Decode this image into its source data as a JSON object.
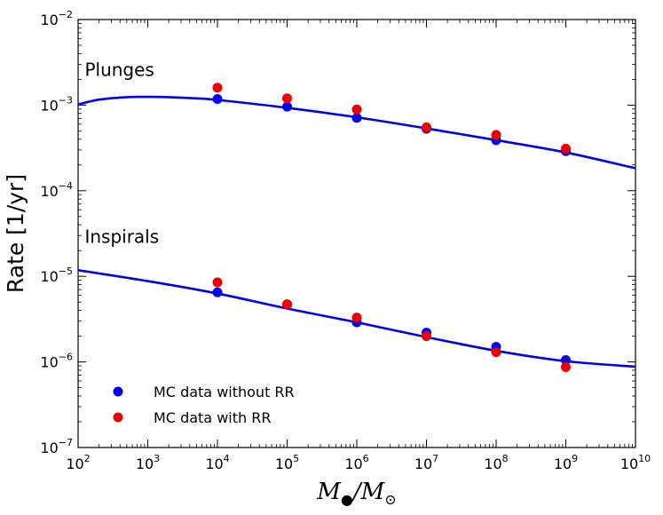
{
  "chart_data": {
    "type": "scatter",
    "xscale": "log",
    "yscale": "log",
    "xlim": [
      100,
      10000000000
    ],
    "ylim": [
      1e-07,
      0.01
    ],
    "xlabel": "M_●/M_⊙",
    "xlabel_parts": {
      "main": "M",
      "sub1": "●",
      "slash": "/M",
      "sub2": "⊙"
    },
    "ylabel": "Rate [1/yr]",
    "x_ticks": [
      {
        "base": "10",
        "exp": "2"
      },
      {
        "base": "10",
        "exp": "3"
      },
      {
        "base": "10",
        "exp": "4"
      },
      {
        "base": "10",
        "exp": "5"
      },
      {
        "base": "10",
        "exp": "6"
      },
      {
        "base": "10",
        "exp": "7"
      },
      {
        "base": "10",
        "exp": "8"
      },
      {
        "base": "10",
        "exp": "9"
      },
      {
        "base": "10",
        "exp": "10"
      }
    ],
    "y_ticks": [
      {
        "base": "10",
        "exp": "−7"
      },
      {
        "base": "10",
        "exp": "−6"
      },
      {
        "base": "10",
        "exp": "−5"
      },
      {
        "base": "10",
        "exp": "−4"
      },
      {
        "base": "10",
        "exp": "−3"
      },
      {
        "base": "10",
        "exp": "−2"
      }
    ],
    "annotations": [
      {
        "text": "Plunges",
        "x": 300,
        "y": 0.0022
      },
      {
        "text": "Inspirals",
        "x": 300,
        "y": 2.45e-05
      }
    ],
    "series": [
      {
        "name": "Plunges fit",
        "kind": "line",
        "color": "#0000ee",
        "x": [
          100,
          200,
          500,
          1000,
          2000,
          5000,
          10000,
          100000,
          1000000,
          10000000,
          100000000,
          1000000000,
          10000000000
        ],
        "y": [
          0.00102,
          0.00116,
          0.00124,
          0.00125,
          0.00124,
          0.0012,
          0.00115,
          0.00093,
          0.00072,
          0.000535,
          0.00039,
          0.00028,
          0.000183
        ]
      },
      {
        "name": "Inspirals fit",
        "kind": "line",
        "color": "#0000ee",
        "x": [
          100,
          1000,
          10000,
          100000,
          1000000,
          10000000,
          100000000,
          1000000000,
          10000000000
        ],
        "y": [
          1.18e-05,
          8.8e-06,
          6.3e-06,
          4.2e-06,
          2.9e-06,
          1.95e-06,
          1.35e-06,
          1.02e-06,
          8.8e-07
        ]
      },
      {
        "name": "MC data without RR",
        "kind": "points",
        "color": "#0000ee",
        "x": [
          10000,
          100000,
          1000000,
          10000000,
          100000000,
          1000000000,
          10000,
          100000,
          1000000,
          10000000,
          100000000,
          1000000000
        ],
        "y": [
          0.00118,
          0.00096,
          0.00071,
          0.00053,
          0.00039,
          0.00029,
          6.5e-06,
          4.7e-06,
          2.9e-06,
          2.2e-06,
          1.5e-06,
          1.05e-06
        ]
      },
      {
        "name": "MC data with RR",
        "kind": "points",
        "color": "#ee0000",
        "x": [
          10000,
          100000,
          1000000,
          10000000,
          100000000,
          1000000000,
          10000,
          100000,
          1000000,
          10000000,
          100000000,
          1000000000
        ],
        "y": [
          0.0016,
          0.0012,
          0.00089,
          0.00055,
          0.00045,
          0.00031,
          8.5e-06,
          4.7e-06,
          3.3e-06,
          2e-06,
          1.3e-06,
          8.7e-07
        ]
      }
    ],
    "legend": {
      "position": "lower-left",
      "entries": [
        {
          "label": "MC data without RR",
          "color": "#0000ee"
        },
        {
          "label": "MC data with RR",
          "color": "#ee0000"
        }
      ]
    }
  }
}
